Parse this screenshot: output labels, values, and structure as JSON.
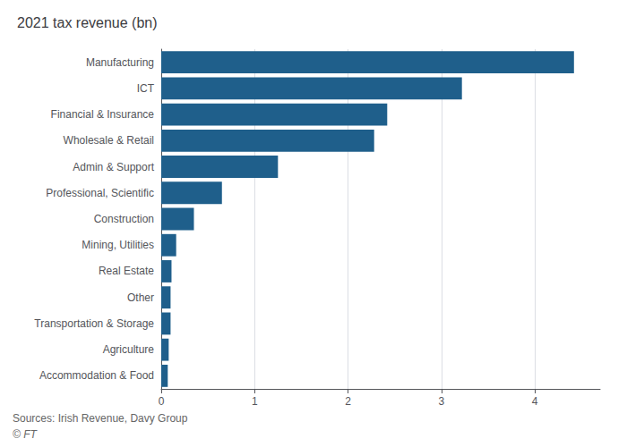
{
  "chart_data": {
    "type": "bar",
    "orientation": "horizontal",
    "title": "2021 tax revenue (bn)",
    "categories": [
      "Accommodation & Food",
      "Agriculture",
      "Transportation & Storage",
      "Other",
      "Real Estate",
      "Mining, Utilities",
      "Construction",
      "Professional, Scientific",
      "Admin & Support",
      "Wholesale & Retail",
      "Financial & Insurance",
      "ICT",
      "Manufacturing"
    ],
    "values": [
      0.07,
      0.08,
      0.1,
      0.1,
      0.11,
      0.16,
      0.35,
      0.65,
      1.25,
      2.28,
      2.42,
      3.22,
      4.42
    ],
    "color": "#1f5f8b",
    "xlim": [
      0,
      4.7
    ],
    "xticks": [
      0,
      1,
      2,
      3,
      4
    ],
    "grid": true,
    "annotations": [
      "Sources: Irish Revenue, Davy Group",
      "© FT"
    ]
  }
}
